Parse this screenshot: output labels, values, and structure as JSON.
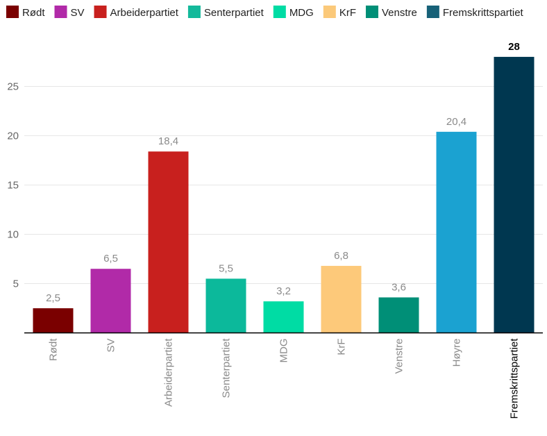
{
  "chart_data": {
    "type": "bar",
    "title": "",
    "xlabel": "",
    "ylabel": "",
    "ylim": [
      0,
      30
    ],
    "yticks": [
      5,
      10,
      15,
      20,
      25
    ],
    "grid": true,
    "highlight": "Fremskrittspartiet",
    "legend_position": "top-left",
    "legend": [
      {
        "label": "Rødt",
        "color": "#7a0000"
      },
      {
        "label": "SV",
        "color": "#b12aa8"
      },
      {
        "label": "Arbeiderpartiet",
        "color": "#c8201e"
      },
      {
        "label": "Senterpartiet",
        "color": "#14b99b"
      },
      {
        "label": "MDG",
        "color": "#00dca4"
      },
      {
        "label": "KrF",
        "color": "#fbc97a"
      },
      {
        "label": "Venstre",
        "color": "#008f77"
      },
      {
        "label": "Fremskrittspartiet",
        "color": "#176178"
      }
    ],
    "categories": [
      "Rødt",
      "SV",
      "Arbeiderpartiet",
      "Senterpartiet",
      "MDG",
      "KrF",
      "Venstre",
      "Høyre",
      "Fremskrittspartiet"
    ],
    "values": [
      2.5,
      6.5,
      18.4,
      5.5,
      3.2,
      6.8,
      3.6,
      20.4,
      28
    ],
    "value_labels": [
      "2,5",
      "6,5",
      "18,4",
      "5,5",
      "3,2",
      "6,8",
      "3,6",
      "20,4",
      "28"
    ],
    "colors": [
      "#7a0000",
      "#b12aa8",
      "#c8201e",
      "#0cb99b",
      "#00dca4",
      "#fdc97a",
      "#008f77",
      "#1ba2d1",
      "#003750"
    ]
  }
}
